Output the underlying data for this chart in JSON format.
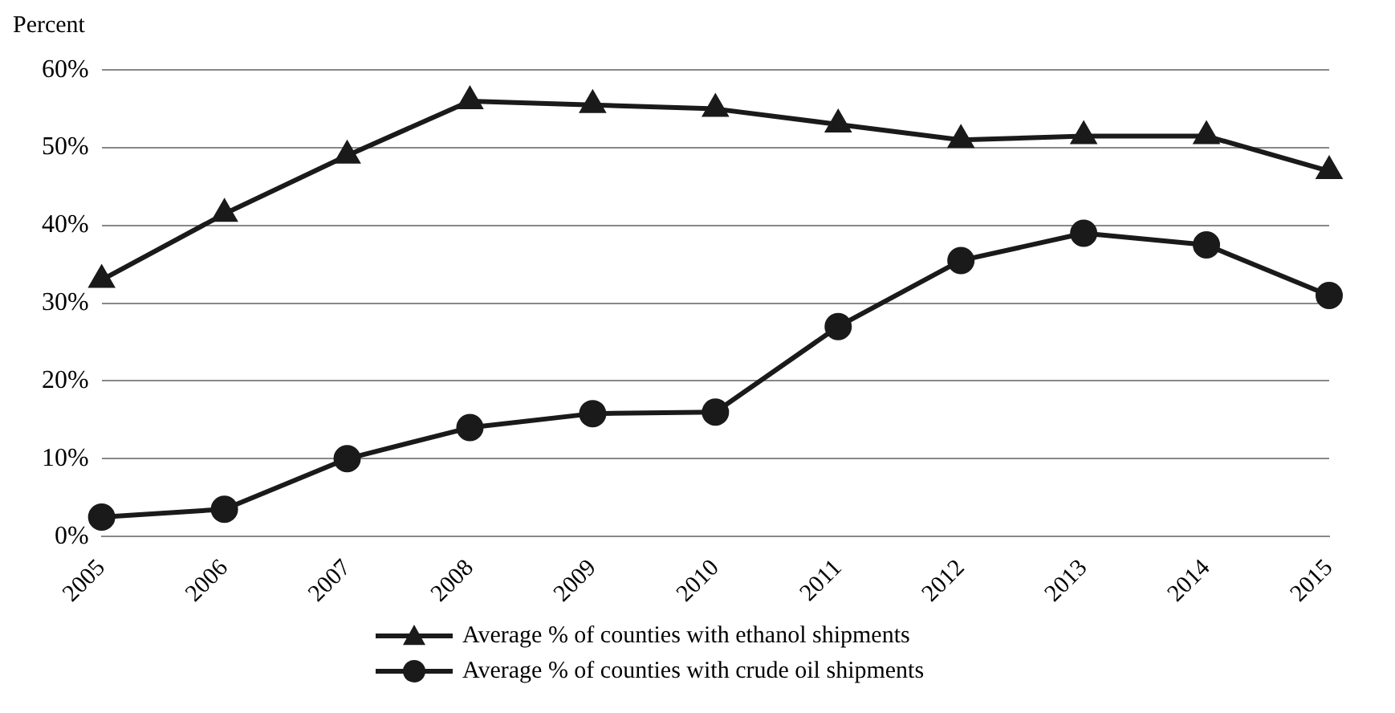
{
  "chart_data": {
    "type": "line",
    "ylabel": "Percent",
    "categories": [
      "2005",
      "2006",
      "2007",
      "2008",
      "2009",
      "2010",
      "2011",
      "2012",
      "2013",
      "2014",
      "2015"
    ],
    "series": [
      {
        "name": "Average % of counties with ethanol shipments",
        "color": "#1a1a1a",
        "marker": "triangle",
        "values": [
          33,
          41.5,
          49,
          56,
          55.5,
          55,
          53,
          51,
          51.5,
          51.5,
          47
        ]
      },
      {
        "name": "Average % of counties with crude oil shipments",
        "color": "#1a1a1a",
        "marker": "circle",
        "values": [
          2.5,
          3.5,
          10,
          14,
          15.8,
          16,
          27,
          35.5,
          39,
          37.5,
          31
        ]
      }
    ],
    "ylim": [
      0,
      60
    ],
    "yticks": [
      {
        "value": 0,
        "label": "0%"
      },
      {
        "value": 10,
        "label": "10%"
      },
      {
        "value": 20,
        "label": "20%"
      },
      {
        "value": 30,
        "label": "30%"
      },
      {
        "value": 40,
        "label": "40%"
      },
      {
        "value": 50,
        "label": "50%"
      },
      {
        "value": 60,
        "label": "60%"
      }
    ],
    "grid": "y",
    "legend": "bottom",
    "line_style": "solid"
  }
}
